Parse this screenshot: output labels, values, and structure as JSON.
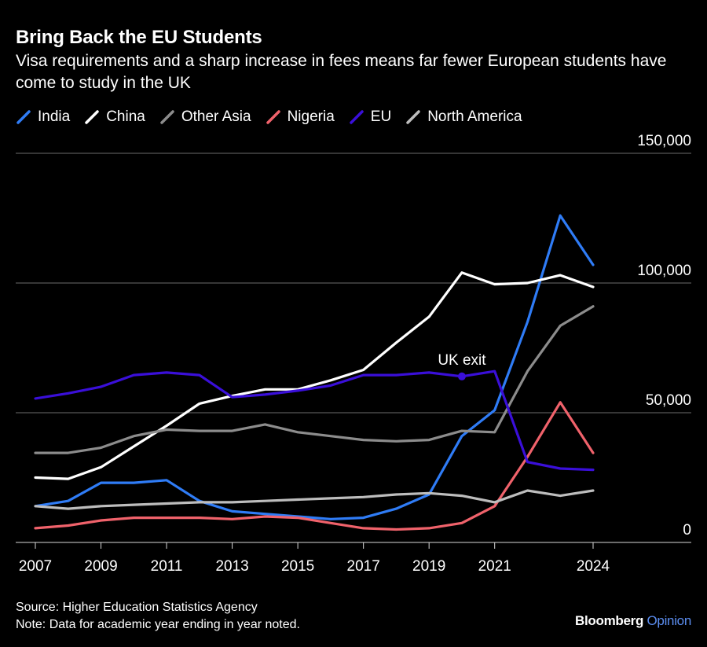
{
  "header": {
    "title": "Bring Back the EU Students",
    "subtitle": "Visa requirements and a sharp increase in fees means far fewer European students have come to study in the UK"
  },
  "footer": {
    "source": "Source: Higher Education Statistics Agency",
    "note": "Note: Data for academic year ending in year noted."
  },
  "brand": {
    "name": "Bloomberg",
    "accent": "Opinion"
  },
  "chart_data": {
    "type": "line",
    "title": "Bring Back the EU Students",
    "xlabel": "",
    "ylabel": "",
    "x": [
      2007,
      2008,
      2009,
      2010,
      2011,
      2012,
      2013,
      2014,
      2015,
      2016,
      2017,
      2018,
      2019,
      2020,
      2021,
      2022,
      2023,
      2024
    ],
    "x_tick_labels": [
      "2007",
      "2009",
      "2011",
      "2013",
      "2015",
      "2017",
      "2019",
      "2021",
      "2024"
    ],
    "x_tick_values": [
      2007,
      2009,
      2011,
      2013,
      2015,
      2017,
      2019,
      2021,
      2024
    ],
    "xlim": [
      2007,
      2027
    ],
    "ylim": [
      0,
      150000
    ],
    "y_ticks": [
      0,
      50000,
      100000,
      150000
    ],
    "y_tick_labels": [
      "0",
      "50,000",
      "100,000",
      "150,000"
    ],
    "grid": true,
    "legend_position": "top-left",
    "series": [
      {
        "name": "India",
        "color": "#2f7cf6",
        "values": [
          14000,
          16000,
          23000,
          23000,
          24000,
          16000,
          12000,
          11000,
          10000,
          9000,
          9500,
          13000,
          18500,
          41000,
          51000,
          85000,
          126000,
          107000
        ]
      },
      {
        "name": "China",
        "color": "#ffffff",
        "values": [
          25000,
          24500,
          29000,
          37000,
          45000,
          53500,
          56500,
          59000,
          59000,
          62500,
          66500,
          77000,
          87000,
          104000,
          99500,
          100000,
          103000,
          98500
        ]
      },
      {
        "name": "Other Asia",
        "color": "#8c8c8c",
        "values": [
          34500,
          34500,
          36500,
          41000,
          43500,
          43000,
          43000,
          45500,
          42500,
          41000,
          39500,
          39000,
          39500,
          43000,
          42500,
          66000,
          83500,
          91000
        ]
      },
      {
        "name": "Nigeria",
        "color": "#f0626b",
        "values": [
          5500,
          6500,
          8500,
          9500,
          9500,
          9500,
          9000,
          10000,
          9500,
          7500,
          5500,
          5000,
          5500,
          7500,
          14000,
          33000,
          54000,
          34500
        ]
      },
      {
        "name": "EU",
        "color": "#3a0fd9",
        "values": [
          55500,
          57500,
          60000,
          64500,
          65500,
          64500,
          56000,
          57000,
          58500,
          60500,
          64500,
          64500,
          65500,
          64000,
          66000,
          31000,
          28500,
          28000
        ]
      },
      {
        "name": "North America",
        "color": "#bdbdbd",
        "values": [
          14000,
          13000,
          14000,
          14500,
          15000,
          15500,
          15500,
          16000,
          16500,
          17000,
          17500,
          18500,
          19000,
          18000,
          15500,
          20000,
          18000,
          20000
        ]
      }
    ],
    "annotations": [
      {
        "text": "UK exit",
        "series": "EU",
        "x": 2020,
        "y": 64000
      }
    ]
  }
}
